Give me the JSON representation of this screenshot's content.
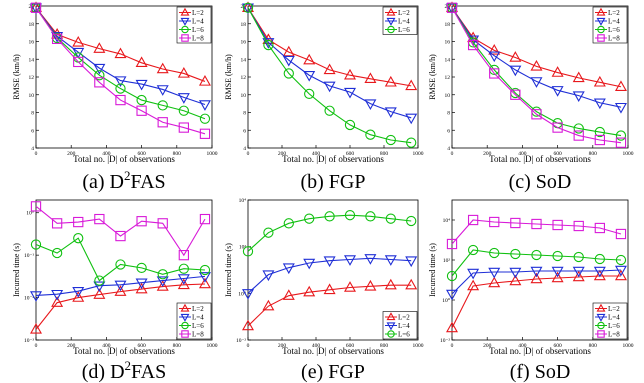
{
  "figure": {
    "panels_desc": "2x3 grid of line charts"
  },
  "colors": {
    "L=2": "#e8181c",
    "L=4": "#1f2fd6",
    "L=6": "#10c010",
    "L=8": "#d81ad8"
  },
  "marker_by_series": {
    "L=2": "triangle-up",
    "L=4": "triangle-down",
    "L=6": "circle",
    "L=8": "square"
  },
  "chart_data": [
    {
      "type": "line",
      "caption": "(a) D²FAS",
      "caption_main": "(a) D",
      "caption_sup": "2",
      "caption_tail": "FAS",
      "xlabel": "Total no. |D| of observations",
      "ylabel": "RMSE (km/h)",
      "xlim": [
        0,
        1000
      ],
      "ylim": [
        4,
        20
      ],
      "yscale": "linear",
      "xticks": [
        0,
        200,
        400,
        600,
        800,
        1000
      ],
      "yticks": [
        4,
        6,
        8,
        10,
        12,
        14,
        16,
        18,
        20
      ],
      "ytick_labels": [
        "4",
        "6",
        "8",
        "10",
        "12",
        "14",
        "16",
        "18",
        "20"
      ],
      "legend": "top-right",
      "legend_labels": [
        "L=2",
        "L=4",
        "L=6",
        "L=8"
      ],
      "x": [
        0,
        120,
        240,
        360,
        480,
        600,
        720,
        840,
        960
      ],
      "series": [
        {
          "name": "L=2",
          "values": [
            19.8,
            16.8,
            15.9,
            15.2,
            14.6,
            13.6,
            12.9,
            12.4,
            11.5
          ]
        },
        {
          "name": "L=4",
          "values": [
            19.8,
            16.6,
            14.8,
            13.0,
            11.6,
            11.2,
            10.6,
            9.7,
            8.9
          ]
        },
        {
          "name": "L=6",
          "values": [
            19.8,
            16.4,
            14.2,
            12.2,
            10.7,
            9.4,
            8.8,
            8.2,
            7.3
          ]
        },
        {
          "name": "L=8",
          "values": [
            19.8,
            16.3,
            13.7,
            11.4,
            9.4,
            8.2,
            6.9,
            6.3,
            5.6
          ]
        }
      ]
    },
    {
      "type": "line",
      "caption": "(b) FGP",
      "caption_main": "(b) FGP",
      "caption_sup": "",
      "caption_tail": "",
      "xlabel": "Total no. |D| of observations",
      "ylabel": "RMSE (km/h)",
      "xlim": [
        0,
        1000
      ],
      "ylim": [
        4,
        20
      ],
      "yscale": "linear",
      "xticks": [
        0,
        200,
        400,
        600,
        800,
        1000
      ],
      "yticks": [
        4,
        6,
        8,
        10,
        12,
        14,
        16,
        18,
        20
      ],
      "ytick_labels": [
        "4",
        "6",
        "8",
        "10",
        "12",
        "14",
        "16",
        "18",
        "20"
      ],
      "legend": "top-right",
      "legend_labels": [
        "L=2",
        "L=4",
        "L=6"
      ],
      "x": [
        0,
        120,
        240,
        360,
        480,
        600,
        720,
        840,
        960
      ],
      "series": [
        {
          "name": "L=2",
          "values": [
            19.8,
            16.2,
            14.8,
            13.9,
            12.8,
            12.2,
            11.8,
            11.4,
            11.0
          ]
        },
        {
          "name": "L=4",
          "values": [
            19.8,
            15.9,
            13.9,
            12.2,
            11.0,
            10.3,
            9.0,
            8.1,
            7.4
          ]
        },
        {
          "name": "L=6",
          "values": [
            19.8,
            15.6,
            12.4,
            10.1,
            8.2,
            6.6,
            5.5,
            4.9,
            4.6
          ]
        }
      ]
    },
    {
      "type": "line",
      "caption": "(c) SoD",
      "caption_main": "(c) SoD",
      "caption_sup": "",
      "caption_tail": "",
      "xlabel": "Total no. |D| of observations",
      "ylabel": "RMSE (km/h)",
      "xlim": [
        0,
        1000
      ],
      "ylim": [
        4,
        20
      ],
      "yscale": "linear",
      "xticks": [
        0,
        200,
        400,
        600,
        800,
        1000
      ],
      "yticks": [
        4,
        6,
        8,
        10,
        12,
        14,
        16,
        18,
        20
      ],
      "ytick_labels": [
        "4",
        "6",
        "8",
        "10",
        "12",
        "14",
        "16",
        "18",
        "20"
      ],
      "legend": "top-right",
      "legend_labels": [
        "L=2",
        "L=4",
        "L=6",
        "L=8"
      ],
      "x": [
        0,
        120,
        240,
        360,
        480,
        600,
        720,
        840,
        960
      ],
      "series": [
        {
          "name": "L=2",
          "values": [
            19.8,
            16.4,
            15.0,
            14.2,
            13.2,
            12.5,
            11.9,
            11.4,
            10.9
          ]
        },
        {
          "name": "L=4",
          "values": [
            19.8,
            16.2,
            14.4,
            12.8,
            11.5,
            10.5,
            9.9,
            9.1,
            8.6
          ]
        },
        {
          "name": "L=6",
          "values": [
            19.8,
            15.9,
            12.8,
            10.2,
            8.1,
            6.8,
            6.2,
            5.8,
            5.4
          ]
        },
        {
          "name": "L=8",
          "values": [
            19.8,
            15.6,
            12.4,
            10.0,
            7.8,
            6.3,
            5.4,
            4.9,
            4.6
          ]
        }
      ]
    },
    {
      "type": "line",
      "caption": "(d) D²FAS",
      "caption_main": "(d) D",
      "caption_sup": "2",
      "caption_tail": "FAS",
      "xlabel": "Total no. |D| of observations",
      "ylabel": "Incurred time (s)",
      "xlim": [
        0,
        1000
      ],
      "ylim": [
        -3,
        0.3
      ],
      "yscale": "log10",
      "xticks": [
        0,
        200,
        400,
        600,
        800,
        1000
      ],
      "yticks": [
        -3,
        -2,
        -1,
        0
      ],
      "ytick_labels": [
        "10⁻³",
        "10⁻²",
        "10⁻¹",
        "10⁰"
      ],
      "legend": "bottom-right",
      "legend_labels": [
        "L=2",
        "L=4",
        "L=6",
        "L=8"
      ],
      "x": [
        0,
        120,
        240,
        360,
        480,
        600,
        720,
        840,
        960
      ],
      "series": [
        {
          "name": "L=2",
          "values": [
            -2.75,
            -2.12,
            -2.0,
            -1.93,
            -1.86,
            -1.8,
            -1.74,
            -1.7,
            -1.68
          ]
        },
        {
          "name": "L=4",
          "values": [
            -1.95,
            -1.92,
            -1.85,
            -1.72,
            -1.7,
            -1.65,
            -1.6,
            -1.55,
            -1.5
          ]
        },
        {
          "name": "L=6",
          "values": [
            -0.75,
            -0.95,
            -0.6,
            -1.6,
            -1.22,
            -1.3,
            -1.45,
            -1.32,
            -1.35
          ]
        },
        {
          "name": "L=8",
          "values": [
            0.15,
            -0.25,
            -0.22,
            -0.15,
            -0.55,
            -0.2,
            -0.25,
            -1.0,
            -0.15
          ]
        }
      ]
    },
    {
      "type": "line",
      "caption": "(e) FGP",
      "caption_main": "(e) FGP",
      "caption_sup": "",
      "caption_tail": "",
      "xlabel": "Total no. |D| of observations",
      "ylabel": "Incurred time (s)",
      "xlim": [
        0,
        1000
      ],
      "ylim": [
        -2,
        4
      ],
      "yscale": "log10",
      "xticks": [
        0,
        200,
        400,
        600,
        800,
        1000
      ],
      "yticks": [
        -2,
        0,
        2,
        4
      ],
      "ytick_labels": [
        "10⁻²",
        "10⁰",
        "10²",
        "10⁴"
      ],
      "legend": "bottom-right",
      "legend_labels": [
        "L=2",
        "L=4",
        "L=6"
      ],
      "x": [
        0,
        120,
        240,
        360,
        480,
        600,
        720,
        840,
        960
      ],
      "series": [
        {
          "name": "L=2",
          "values": [
            -1.4,
            -0.55,
            -0.1,
            0.05,
            0.15,
            0.25,
            0.3,
            0.35,
            0.35
          ]
        },
        {
          "name": "L=4",
          "values": [
            0.0,
            0.8,
            1.1,
            1.3,
            1.4,
            1.45,
            1.5,
            1.45,
            1.4
          ]
        },
        {
          "name": "L=6",
          "values": [
            1.8,
            2.6,
            3.0,
            3.2,
            3.3,
            3.35,
            3.3,
            3.2,
            3.1
          ]
        }
      ]
    },
    {
      "type": "line",
      "caption": "(f) SoD",
      "caption_main": "(f) SoD",
      "caption_sup": "",
      "caption_tail": "",
      "xlabel": "Total no. |D| of observations",
      "ylabel": "Incurred time (s)",
      "xlim": [
        0,
        1000
      ],
      "ylim": [
        -2,
        5
      ],
      "yscale": "log10",
      "xticks": [
        0,
        200,
        400,
        600,
        800,
        1000
      ],
      "yticks": [
        -2,
        0,
        2,
        4
      ],
      "ytick_labels": [
        "10⁻²",
        "10⁰",
        "10²",
        "10⁴"
      ],
      "legend": "bottom-right",
      "legend_labels": [
        "L=2",
        "L=4",
        "L=6",
        "L=8"
      ],
      "x": [
        0,
        120,
        240,
        360,
        480,
        600,
        720,
        840,
        960
      ],
      "series": [
        {
          "name": "L=2",
          "values": [
            -1.4,
            0.7,
            0.85,
            0.95,
            1.05,
            1.1,
            1.15,
            1.2,
            1.2
          ]
        },
        {
          "name": "L=4",
          "values": [
            0.3,
            1.35,
            1.4,
            1.4,
            1.45,
            1.45,
            1.45,
            1.45,
            1.5
          ]
        },
        {
          "name": "L=6",
          "values": [
            1.2,
            2.5,
            2.35,
            2.3,
            2.25,
            2.2,
            2.15,
            2.05,
            2.0
          ]
        },
        {
          "name": "L=8",
          "values": [
            2.8,
            4.0,
            3.9,
            3.85,
            3.8,
            3.75,
            3.7,
            3.6,
            3.3
          ]
        }
      ]
    }
  ]
}
